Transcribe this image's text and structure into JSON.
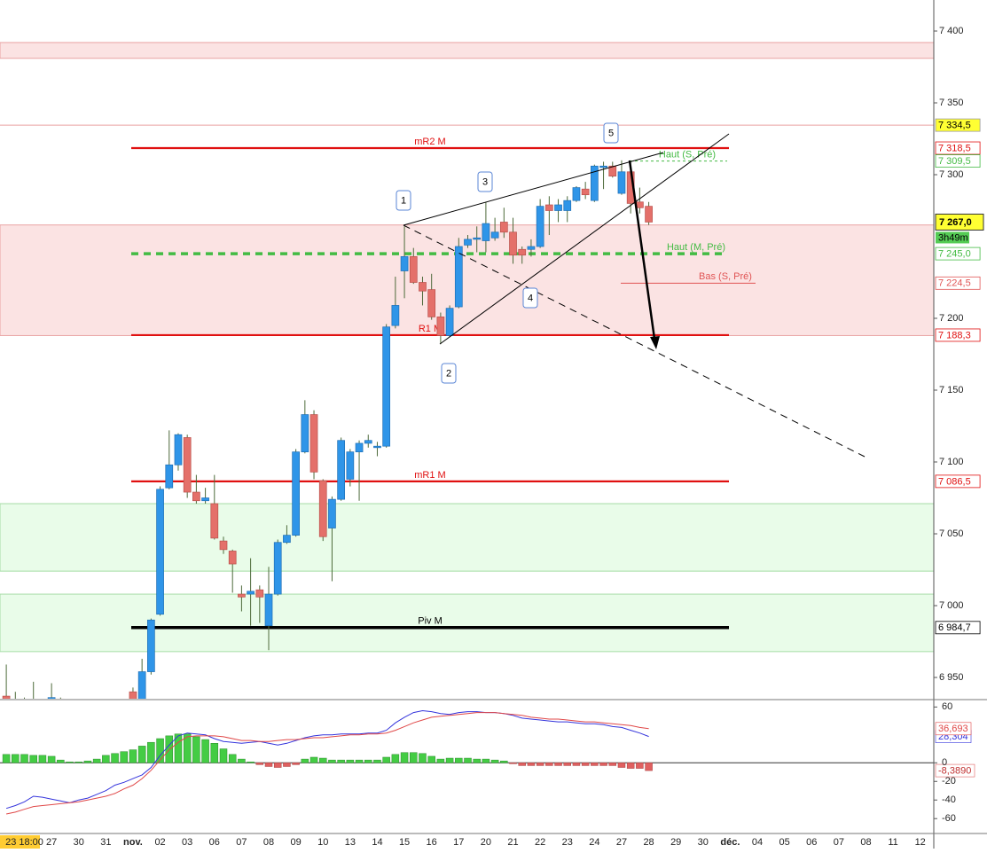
{
  "chart_data": {
    "type": "candlestick",
    "ylim": [
      6935.2,
      7421.6
    ],
    "yticks": [
      {
        "value": 7400,
        "label": "7 400"
      },
      {
        "value": 7350,
        "label": "7 350"
      },
      {
        "value": 7300,
        "label": "7 300"
      },
      {
        "value": 7200,
        "label": "7 200"
      },
      {
        "value": 7150,
        "label": "7 150"
      },
      {
        "value": 7100,
        "label": "7 100"
      },
      {
        "value": 7050,
        "label": "7 050"
      },
      {
        "value": 7000,
        "label": "7 000"
      },
      {
        "value": 6950,
        "label": "6 950"
      }
    ],
    "categories": [
      null,
      null,
      "23 18:00",
      null,
      null,
      "27",
      null,
      null,
      "30",
      null,
      null,
      "31",
      null,
      null,
      "nov.",
      null,
      null,
      "02",
      null,
      null,
      "03",
      null,
      null,
      "06",
      null,
      null,
      "07",
      null,
      null,
      "08",
      null,
      null,
      "09",
      null,
      null,
      "10",
      null,
      null,
      "13",
      null,
      null,
      "14",
      null,
      null,
      "15",
      null,
      null,
      "16",
      null,
      null,
      "17",
      null,
      null,
      "20",
      null,
      null,
      "21",
      null,
      null,
      "22",
      null,
      null,
      "23",
      null,
      null,
      "24",
      null,
      null,
      "27",
      null,
      null,
      "28",
      null,
      null,
      "29",
      null,
      null,
      "30",
      null,
      null,
      "déc.",
      null,
      null,
      "04",
      null,
      null,
      "05",
      null,
      null,
      "06",
      null,
      null,
      "07",
      null,
      null,
      "08",
      null,
      null,
      "11",
      null,
      null,
      "12",
      null
    ],
    "up_color": "#2f95e8",
    "down_color": "#e4706a",
    "candles": [
      [
        6937,
        6959,
        6925,
        6933
      ],
      [
        6933,
        6940,
        6920,
        6928
      ],
      [
        6928,
        6936,
        6915,
        6920
      ],
      [
        6922,
        6947,
        6915,
        6930
      ],
      [
        6930,
        6934,
        6918,
        6922
      ],
      [
        6923,
        6946,
        6918,
        6936
      ],
      [
        6935,
        6936,
        6915,
        6920
      ],
      [
        6920,
        6930,
        6910,
        6918
      ],
      [
        6918,
        6925,
        6905,
        6912
      ],
      [
        6912,
        6920,
        6900,
        6915
      ],
      [
        6915,
        6925,
        6905,
        6918
      ],
      [
        6918,
        6928,
        6910,
        6922
      ],
      [
        6922,
        6930,
        6912,
        6925
      ],
      [
        6925,
        6932,
        6915,
        6928
      ],
      [
        6940,
        6943,
        6925,
        6930
      ],
      [
        6925,
        6963,
        6920,
        6954
      ],
      [
        6954,
        6991,
        6952,
        6990
      ],
      [
        6994,
        7083,
        6993,
        7081
      ],
      [
        7082,
        7122,
        7081,
        7098
      ],
      [
        7098,
        7120,
        7094,
        7119
      ],
      [
        7117,
        7119,
        7075,
        7079
      ],
      [
        7079,
        7091,
        7071,
        7073
      ],
      [
        7073,
        7082,
        7071,
        7075
      ],
      [
        7071,
        7091,
        7046,
        7047
      ],
      [
        7045,
        7048,
        7036,
        7039
      ],
      [
        7038,
        7039,
        7009,
        7029
      ],
      [
        7008,
        7014,
        6996,
        7006
      ],
      [
        7008,
        7033,
        6986,
        7010
      ],
      [
        7011,
        7014,
        6988,
        7006
      ],
      [
        6986,
        7027,
        6969,
        7008
      ],
      [
        7008,
        7046,
        7007,
        7044
      ],
      [
        7044,
        7056,
        7043,
        7049
      ],
      [
        7049,
        7109,
        7048,
        7107
      ],
      [
        7107,
        7143,
        7106,
        7133
      ],
      [
        7133,
        7136,
        7088,
        7093
      ],
      [
        7087,
        7088,
        7045,
        7048
      ],
      [
        7054,
        7076,
        7017,
        7074
      ],
      [
        7074,
        7117,
        7073,
        7115
      ],
      [
        7088,
        7109,
        7083,
        7107
      ],
      [
        7107,
        7115,
        7073,
        7113
      ],
      [
        7113,
        7119,
        7110,
        7115
      ],
      [
        7110,
        7114,
        7104,
        7111
      ],
      [
        7111,
        7196,
        7110,
        7194
      ],
      [
        7195,
        7229,
        7193,
        7209
      ],
      [
        7233,
        7264,
        7214,
        7243
      ],
      [
        7243,
        7249,
        7224,
        7225
      ],
      [
        7225,
        7229,
        7209,
        7219
      ],
      [
        7220,
        7231,
        7199,
        7201
      ],
      [
        7201,
        7204,
        7182,
        7188
      ],
      [
        7188,
        7209,
        7187,
        7207
      ],
      [
        7208,
        7256,
        7207,
        7250
      ],
      [
        7251,
        7258,
        7249,
        7255
      ],
      [
        7255,
        7264,
        7246,
        7256
      ],
      [
        7254,
        7281,
        7246,
        7266
      ],
      [
        7256,
        7270,
        7254,
        7260
      ],
      [
        7267,
        7277,
        7256,
        7260
      ],
      [
        7260,
        7270,
        7238,
        7244
      ],
      [
        7248,
        7250,
        7238,
        7244
      ],
      [
        7248,
        7255,
        7243,
        7250
      ],
      [
        7250,
        7283,
        7249,
        7278
      ],
      [
        7279,
        7285,
        7258,
        7275
      ],
      [
        7275,
        7283,
        7267,
        7279
      ],
      [
        7275,
        7285,
        7267,
        7282
      ],
      [
        7282,
        7292,
        7281,
        7291
      ],
      [
        7290,
        7295,
        7283,
        7286
      ],
      [
        7282,
        7307,
        7281,
        7306
      ],
      [
        7305,
        7309,
        7290,
        7306
      ],
      [
        7306,
        7309,
        7298,
        7299
      ],
      [
        7287,
        7310,
        7286,
        7302
      ],
      [
        7302,
        7309,
        7273,
        7280
      ],
      [
        7281,
        7291,
        7273,
        7277
      ],
      [
        7278,
        7281,
        7265,
        7267
      ],
      null,
      null,
      null,
      null,
      null,
      null,
      null,
      null,
      null,
      null,
      null,
      null,
      null,
      null,
      null,
      null,
      null,
      null,
      null,
      null,
      null,
      null,
      null,
      null,
      null,
      null,
      null,
      null,
      null,
      null,
      null
    ],
    "zones": [
      {
        "from": 7381,
        "to": 7392,
        "color": "#fbe3e3",
        "border": "#e9a3a3"
      },
      {
        "from": 7188,
        "to": 7265,
        "color": "#fbe3e3",
        "border": "#e9a3a3"
      },
      {
        "from": 7024,
        "to": 7071,
        "color": "#e9fce9",
        "border": "#a6dda6"
      },
      {
        "from": 6968,
        "to": 7008,
        "color": "#e9fce9",
        "border": "#a6dda6"
      }
    ],
    "levels": [
      {
        "value": 7334.5,
        "axis_label": "7 334,5",
        "color": "#eaa0a0",
        "style": "thin",
        "axis_bg": "#ffff33"
      },
      {
        "value": 7318.5,
        "axis_label": "7 318,5",
        "name": "mR2 M",
        "color": "#e01010",
        "style": "thick"
      },
      {
        "value": 7309.5,
        "axis_label": "7 309,5",
        "name": "Haut (S, Pré)",
        "color": "#44bb44",
        "style": "dashed"
      },
      {
        "value": 7245,
        "axis_label": "7 245,0",
        "name": "Haut (M, Pré)",
        "color": "#44bb44",
        "style": "thick-dashed"
      },
      {
        "value": 7224.5,
        "axis_label": "7 224,5",
        "name": "Bas (S, Pré)",
        "color": "#e05555",
        "style": "thin"
      },
      {
        "value": 7188.3,
        "axis_label": "7 188,3",
        "name": "R1 M",
        "color": "#e01010",
        "style": "thick"
      },
      {
        "value": 7086.5,
        "axis_label": "7 086,5",
        "name": "mR1 M",
        "color": "#e01010",
        "style": "thick"
      },
      {
        "value": 6984.7,
        "axis_label": "6 984,7",
        "name": "Piv M",
        "color": "#000000",
        "style": "heavy"
      }
    ],
    "current": {
      "value": 7267.0,
      "label": "7 267,0",
      "timer": "3h49m"
    },
    "wave_labels": [
      "1",
      "2",
      "3",
      "4",
      "5"
    ],
    "macd": {
      "ylim": [
        -76,
        67
      ],
      "yticks": [
        60,
        0,
        -20,
        -40,
        -60
      ],
      "histogram": {
        "color_up": "#44cc44",
        "color_down": "#e06060",
        "value_label": "-8,3890",
        "values": [
          9,
          9,
          9,
          8,
          8,
          7,
          3,
          1,
          1,
          2,
          4,
          8,
          10,
          12,
          14,
          18,
          22,
          26,
          29,
          31,
          31,
          28,
          25,
          21,
          15,
          9,
          4,
          1,
          -2,
          -4,
          -5,
          -4,
          -2,
          4,
          6,
          5,
          3,
          3,
          3,
          3,
          3,
          3,
          6,
          9,
          11,
          11,
          10,
          7,
          4,
          5,
          5,
          5,
          4,
          4,
          3,
          2,
          -1,
          -3,
          -3,
          -3,
          -3,
          -3,
          -3,
          -3,
          -3,
          -3,
          -3,
          -3,
          -5,
          -6,
          -6,
          -8.389,
          null,
          null,
          null,
          null,
          null,
          null,
          null,
          null,
          null,
          null,
          null,
          null,
          null,
          null,
          null,
          null,
          null,
          null,
          null,
          null,
          null,
          null,
          null,
          null,
          null,
          null,
          null,
          null,
          null,
          null,
          null
        ]
      },
      "series": [
        {
          "color": "#3434dc",
          "value_label": "28,304",
          "values": [
            -49,
            -46,
            -42,
            -36,
            -37,
            -39,
            -41,
            -43,
            -40,
            -38,
            -34,
            -30,
            -24,
            -21,
            -17,
            -13,
            -5,
            8,
            19,
            29,
            32,
            31,
            30,
            26,
            23,
            22,
            21,
            22,
            23,
            21,
            19,
            21,
            24,
            27,
            29,
            30,
            30,
            31,
            31,
            31,
            32,
            32,
            35,
            43,
            49,
            54,
            56,
            55,
            53,
            52,
            54,
            55,
            55,
            54,
            54,
            53,
            51,
            48,
            47,
            46,
            45,
            44,
            44,
            43,
            42,
            42,
            41,
            39,
            38,
            35,
            32,
            28.304,
            null,
            null,
            null,
            null,
            null,
            null,
            null,
            null,
            null,
            null,
            null,
            null,
            null,
            null,
            null,
            null,
            null,
            null,
            null,
            null,
            null,
            null,
            null,
            null,
            null,
            null,
            null,
            null,
            null,
            null,
            null
          ]
        },
        {
          "color": "#e04848",
          "value_label": "36,693",
          "values": [
            -55,
            -53,
            -50,
            -47,
            -46,
            -45,
            -44,
            -43,
            -42,
            -40,
            -38,
            -36,
            -33,
            -28,
            -24,
            -17,
            -8,
            3,
            14,
            22,
            28,
            29,
            29,
            29,
            28,
            26,
            24,
            24,
            23,
            23,
            24,
            25,
            25,
            26,
            27,
            27,
            28,
            29,
            30,
            30,
            31,
            31,
            32,
            35,
            39,
            43,
            46,
            49,
            50,
            51,
            52,
            53,
            54,
            54,
            54,
            53,
            52,
            51,
            49,
            48,
            47,
            47,
            46,
            45,
            44,
            44,
            43,
            42,
            41,
            40,
            38,
            36.693,
            null,
            null,
            null,
            null,
            null,
            null,
            null,
            null,
            null,
            null,
            null,
            null,
            null,
            null,
            null,
            null,
            null,
            null,
            null,
            null,
            null,
            null,
            null,
            null,
            null,
            null,
            null,
            null,
            null,
            null,
            null
          ]
        }
      ]
    }
  }
}
